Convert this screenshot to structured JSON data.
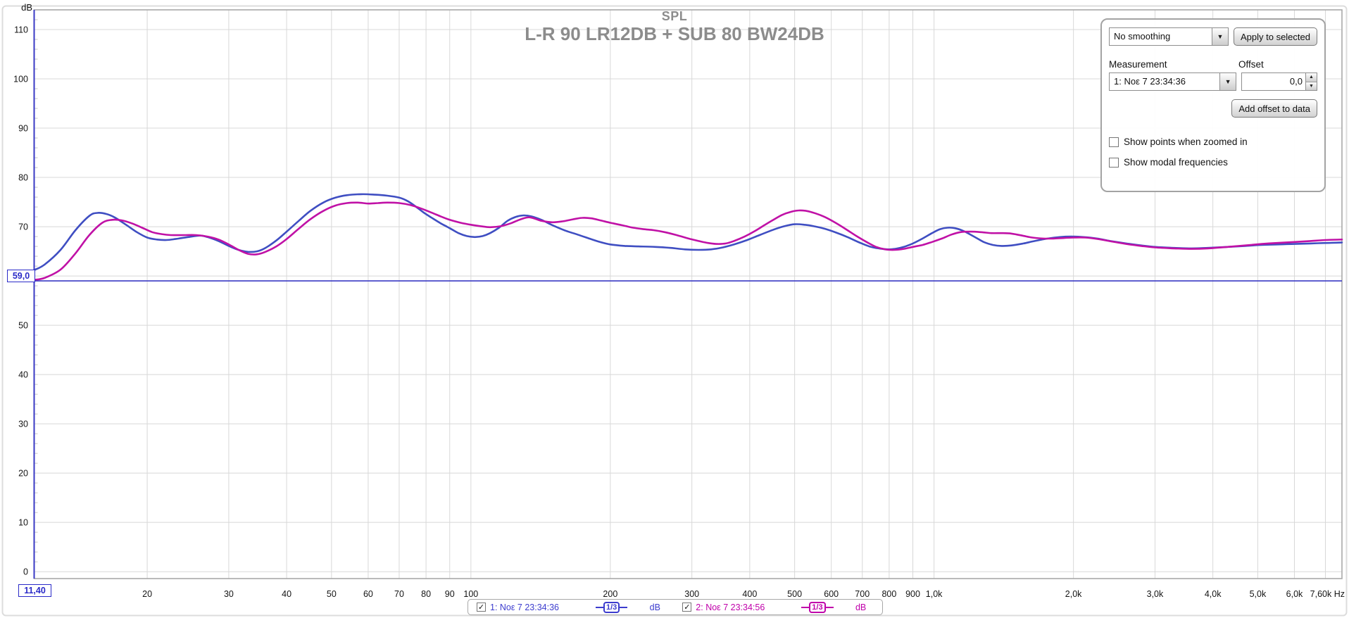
{
  "chart_data": {
    "type": "line",
    "title": "SPL",
    "subtitle": "L-R 90 LR12DB + SUB 80 BW24DB",
    "ylabel_unit": "dB",
    "xlabel_unit": "Hz",
    "x_scale": "log",
    "xlim": [
      11.4,
      7600
    ],
    "ylim": [
      -1.4,
      114.0
    ],
    "grid": true,
    "legend_position": "bottom",
    "y_ticks": [
      0,
      10,
      20,
      30,
      40,
      50,
      60,
      70,
      80,
      90,
      100,
      110
    ],
    "x_gridlines": [
      20,
      30,
      40,
      50,
      60,
      70,
      80,
      90,
      100,
      200,
      300,
      400,
      500,
      600,
      700,
      800,
      900,
      1000,
      2000,
      3000,
      4000,
      5000,
      6000,
      7000
    ],
    "x_ticks": [
      {
        "value": 20,
        "label": "20"
      },
      {
        "value": 30,
        "label": "30"
      },
      {
        "value": 40,
        "label": "40"
      },
      {
        "value": 50,
        "label": "50"
      },
      {
        "value": 60,
        "label": "60"
      },
      {
        "value": 70,
        "label": "70"
      },
      {
        "value": 80,
        "label": "80"
      },
      {
        "value": 90,
        "label": "90"
      },
      {
        "value": 100,
        "label": "100"
      },
      {
        "value": 200,
        "label": "200"
      },
      {
        "value": 300,
        "label": "300"
      },
      {
        "value": 400,
        "label": "400"
      },
      {
        "value": 500,
        "label": "500"
      },
      {
        "value": 600,
        "label": "600"
      },
      {
        "value": 700,
        "label": "700"
      },
      {
        "value": 800,
        "label": "800"
      },
      {
        "value": 900,
        "label": "900"
      },
      {
        "value": 1000,
        "label": "1,0k"
      },
      {
        "value": 2000,
        "label": "2,0k"
      },
      {
        "value": 3000,
        "label": "3,0k"
      },
      {
        "value": 4000,
        "label": "4,0k"
      },
      {
        "value": 5000,
        "label": "5,0k"
      },
      {
        "value": 6000,
        "label": "6,0k"
      },
      {
        "value": 7600,
        "label": "7,60k Hz"
      }
    ],
    "cursor": {
      "x_value": 11.4,
      "y_value": 59.0,
      "x_label": "11,40",
      "y_label": "59,0",
      "color": "#3a3ac4"
    },
    "colors": {
      "grid": "#d8d8d8",
      "minor_tick": "#c4c4c4",
      "border": "#a8a8a8",
      "outer_bevel": "#dcdcdc",
      "tick_text": "#141414"
    },
    "series": [
      {
        "name": "1: Νοε 7 23:34:36",
        "color": "#3f4ec2",
        "smoothing": "1/3",
        "unit": "dB",
        "points": [
          [
            11.4,
            61.2
          ],
          [
            12,
            62.3
          ],
          [
            13,
            65.3
          ],
          [
            14,
            69.3
          ],
          [
            15,
            72.2
          ],
          [
            15.6,
            72.8
          ],
          [
            16.3,
            72.6
          ],
          [
            17,
            71.9
          ],
          [
            18,
            70.4
          ],
          [
            19,
            68.9
          ],
          [
            20,
            67.8
          ],
          [
            21,
            67.4
          ],
          [
            22,
            67.3
          ],
          [
            23,
            67.5
          ],
          [
            24.5,
            67.9
          ],
          [
            26,
            68.2
          ],
          [
            27,
            67.9
          ],
          [
            28.5,
            67.1
          ],
          [
            30,
            66.1
          ],
          [
            31.5,
            65.3
          ],
          [
            33,
            64.9
          ],
          [
            34.5,
            65.0
          ],
          [
            36,
            65.7
          ],
          [
            38,
            67.2
          ],
          [
            40,
            69.0
          ],
          [
            42.5,
            71.2
          ],
          [
            45,
            73.2
          ],
          [
            48,
            74.9
          ],
          [
            51,
            75.9
          ],
          [
            54,
            76.4
          ],
          [
            58,
            76.6
          ],
          [
            62,
            76.5
          ],
          [
            66,
            76.3
          ],
          [
            70,
            75.9
          ],
          [
            73,
            75.2
          ],
          [
            76,
            74.1
          ],
          [
            79,
            72.9
          ],
          [
            82,
            71.9
          ],
          [
            86,
            70.7
          ],
          [
            90,
            69.7
          ],
          [
            94,
            68.7
          ],
          [
            98,
            68.1
          ],
          [
            102,
            67.9
          ],
          [
            106,
            68.1
          ],
          [
            110,
            68.7
          ],
          [
            115,
            69.8
          ],
          [
            120,
            71.2
          ],
          [
            125,
            72.0
          ],
          [
            130,
            72.3
          ],
          [
            135,
            72.1
          ],
          [
            142,
            71.4
          ],
          [
            150,
            70.3
          ],
          [
            160,
            69.2
          ],
          [
            170,
            68.4
          ],
          [
            180,
            67.6
          ],
          [
            190,
            66.9
          ],
          [
            200,
            66.4
          ],
          [
            215,
            66.1
          ],
          [
            230,
            66.0
          ],
          [
            250,
            65.9
          ],
          [
            270,
            65.7
          ],
          [
            290,
            65.4
          ],
          [
            310,
            65.3
          ],
          [
            330,
            65.4
          ],
          [
            350,
            65.8
          ],
          [
            370,
            66.4
          ],
          [
            395,
            67.3
          ],
          [
            420,
            68.3
          ],
          [
            450,
            69.4
          ],
          [
            475,
            70.1
          ],
          [
            500,
            70.5
          ],
          [
            525,
            70.4
          ],
          [
            550,
            70.1
          ],
          [
            580,
            69.6
          ],
          [
            615,
            68.8
          ],
          [
            650,
            67.9
          ],
          [
            690,
            66.8
          ],
          [
            725,
            66.0
          ],
          [
            760,
            65.6
          ],
          [
            800,
            65.4
          ],
          [
            845,
            65.7
          ],
          [
            890,
            66.4
          ],
          [
            940,
            67.5
          ],
          [
            990,
            68.7
          ],
          [
            1030,
            69.5
          ],
          [
            1070,
            69.8
          ],
          [
            1110,
            69.7
          ],
          [
            1160,
            69.1
          ],
          [
            1220,
            68.0
          ],
          [
            1280,
            66.9
          ],
          [
            1340,
            66.3
          ],
          [
            1400,
            66.1
          ],
          [
            1470,
            66.2
          ],
          [
            1560,
            66.6
          ],
          [
            1650,
            67.1
          ],
          [
            1760,
            67.6
          ],
          [
            1870,
            67.9
          ],
          [
            1980,
            68.0
          ],
          [
            2100,
            67.9
          ],
          [
            2250,
            67.6
          ],
          [
            2400,
            67.1
          ],
          [
            2600,
            66.6
          ],
          [
            2800,
            66.2
          ],
          [
            3000,
            65.9
          ],
          [
            3300,
            65.7
          ],
          [
            3600,
            65.6
          ],
          [
            3900,
            65.7
          ],
          [
            4300,
            65.9
          ],
          [
            4700,
            66.1
          ],
          [
            5100,
            66.3
          ],
          [
            5500,
            66.4
          ],
          [
            6000,
            66.5
          ],
          [
            6500,
            66.6
          ],
          [
            7000,
            66.7
          ],
          [
            7600,
            66.8
          ]
        ]
      },
      {
        "name": "2: Νοε 7 23:34:56",
        "color": "#c011a6",
        "smoothing": "1/3",
        "unit": "dB",
        "points": [
          [
            11.4,
            59.2
          ],
          [
            12,
            59.6
          ],
          [
            13,
            61.3
          ],
          [
            14,
            64.6
          ],
          [
            15,
            68.3
          ],
          [
            16,
            70.8
          ],
          [
            16.8,
            71.4
          ],
          [
            17.6,
            71.3
          ],
          [
            18.5,
            70.7
          ],
          [
            19.5,
            69.8
          ],
          [
            20.5,
            68.9
          ],
          [
            21.5,
            68.5
          ],
          [
            22.5,
            68.3
          ],
          [
            24,
            68.3
          ],
          [
            25.5,
            68.3
          ],
          [
            27,
            68.0
          ],
          [
            28.5,
            67.4
          ],
          [
            30,
            66.4
          ],
          [
            31.5,
            65.3
          ],
          [
            33,
            64.5
          ],
          [
            34.5,
            64.4
          ],
          [
            36,
            64.9
          ],
          [
            38,
            66.0
          ],
          [
            40,
            67.5
          ],
          [
            42.5,
            69.6
          ],
          [
            45,
            71.5
          ],
          [
            48,
            73.2
          ],
          [
            51,
            74.3
          ],
          [
            54,
            74.8
          ],
          [
            57,
            74.9
          ],
          [
            60,
            74.7
          ],
          [
            63,
            74.8
          ],
          [
            66,
            74.9
          ],
          [
            70,
            74.8
          ],
          [
            74,
            74.4
          ],
          [
            78,
            73.7
          ],
          [
            82,
            72.9
          ],
          [
            86,
            72.1
          ],
          [
            90,
            71.4
          ],
          [
            95,
            70.8
          ],
          [
            100,
            70.4
          ],
          [
            105,
            70.1
          ],
          [
            110,
            69.9
          ],
          [
            116,
            70.1
          ],
          [
            122,
            70.7
          ],
          [
            128,
            71.5
          ],
          [
            134,
            71.9
          ],
          [
            142,
            71.2
          ],
          [
            150,
            70.9
          ],
          [
            158,
            71.1
          ],
          [
            166,
            71.5
          ],
          [
            174,
            71.8
          ],
          [
            182,
            71.7
          ],
          [
            190,
            71.3
          ],
          [
            200,
            70.8
          ],
          [
            212,
            70.3
          ],
          [
            224,
            69.8
          ],
          [
            236,
            69.5
          ],
          [
            248,
            69.3
          ],
          [
            262,
            68.9
          ],
          [
            278,
            68.3
          ],
          [
            295,
            67.6
          ],
          [
            310,
            67.1
          ],
          [
            325,
            66.7
          ],
          [
            340,
            66.5
          ],
          [
            355,
            66.6
          ],
          [
            370,
            67.1
          ],
          [
            390,
            68.0
          ],
          [
            410,
            69.1
          ],
          [
            430,
            70.3
          ],
          [
            450,
            71.4
          ],
          [
            470,
            72.4
          ],
          [
            490,
            73.0
          ],
          [
            510,
            73.3
          ],
          [
            530,
            73.2
          ],
          [
            555,
            72.7
          ],
          [
            580,
            72.0
          ],
          [
            610,
            70.9
          ],
          [
            645,
            69.5
          ],
          [
            680,
            68.1
          ],
          [
            715,
            66.9
          ],
          [
            750,
            65.9
          ],
          [
            785,
            65.4
          ],
          [
            820,
            65.3
          ],
          [
            860,
            65.5
          ],
          [
            900,
            65.9
          ],
          [
            945,
            66.3
          ],
          [
            990,
            66.9
          ],
          [
            1040,
            67.6
          ],
          [
            1090,
            68.4
          ],
          [
            1140,
            68.9
          ],
          [
            1200,
            69.0
          ],
          [
            1260,
            68.9
          ],
          [
            1330,
            68.7
          ],
          [
            1400,
            68.7
          ],
          [
            1470,
            68.6
          ],
          [
            1550,
            68.2
          ],
          [
            1630,
            67.8
          ],
          [
            1720,
            67.6
          ],
          [
            1810,
            67.6
          ],
          [
            1900,
            67.7
          ],
          [
            2000,
            67.8
          ],
          [
            2120,
            67.8
          ],
          [
            2260,
            67.5
          ],
          [
            2420,
            67.0
          ],
          [
            2600,
            66.5
          ],
          [
            2800,
            66.1
          ],
          [
            3000,
            65.8
          ],
          [
            3300,
            65.6
          ],
          [
            3600,
            65.5
          ],
          [
            3900,
            65.6
          ],
          [
            4300,
            65.9
          ],
          [
            4700,
            66.2
          ],
          [
            5100,
            66.5
          ],
          [
            5500,
            66.7
          ],
          [
            6000,
            66.9
          ],
          [
            6500,
            67.1
          ],
          [
            7000,
            67.3
          ],
          [
            7600,
            67.4
          ]
        ]
      }
    ]
  },
  "panel": {
    "smoothing_value": "No smoothing",
    "apply_button": "Apply to selected",
    "measurement_label": "Measurement",
    "offset_label": "Offset",
    "measurement_value": "1: Νοε 7 23:34:36",
    "offset_value": "0,0",
    "add_offset_button": "Add offset to data",
    "show_points_label": "Show points when zoomed in",
    "show_modal_label": "Show modal frequencies"
  },
  "legend": {
    "items": [
      {
        "label": "1: Νοε 7 23:34:36",
        "badge": "1/3",
        "unit": "dB",
        "color": "#3c3cce",
        "checked": true
      },
      {
        "label": "2: Νοε 7 23:34:56",
        "badge": "1/3",
        "unit": "dB",
        "color": "#c000aa",
        "checked": true
      }
    ]
  },
  "icons": {
    "check": "✓",
    "dropdown_arrow": "▼",
    "spinner_up": "▲",
    "spinner_down": "▼"
  }
}
